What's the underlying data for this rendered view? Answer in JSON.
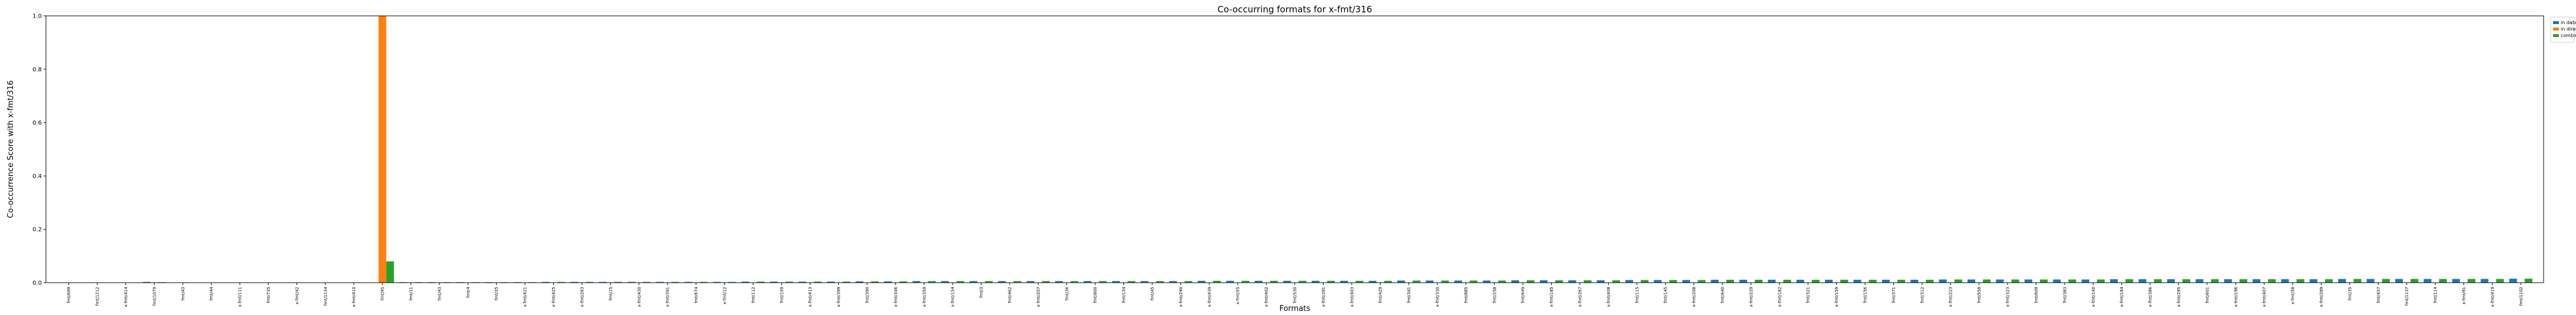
{
  "chart_data": {
    "type": "bar",
    "title": "Co-occurring formats for x-fmt/316",
    "xlabel": "Formats",
    "ylabel": "Co-occurrence Score with x-fmt/316",
    "ylim": [
      0,
      1.0
    ],
    "yticks": [
      "0.0",
      "0.2",
      "0.4",
      "0.6",
      "0.8",
      "1.0"
    ],
    "legend_position": "outside-top-right",
    "colors": [
      "#1f77b4",
      "#ff7f0e",
      "#2ca02c"
    ],
    "categories": [
      "fmt/699",
      "fmt/1212",
      "x-fmt/414",
      "fmt/1079",
      "fmt/43",
      "fmt/44",
      "x-fmt/111",
      "fmt/735",
      "x-fmt/42",
      "fmt/1134",
      "x-fmt/410",
      "fmt/95",
      "fmt/11",
      "fmt/43",
      "fmt/4",
      "fmt/35",
      "x-fmt/421",
      "x-fmt/425",
      "x-fmt/263",
      "fmt/15",
      "x-fmt/430",
      "x-fmt/391",
      "fmt/674",
      "x-fmt/12",
      "fmt/112",
      "fmt/109",
      "x-fmt/413",
      "x-fmt/399",
      "fmt/390",
      "x-fmt/346",
      "x-fmt/359",
      "x-fmt/154",
      "fmt/3",
      "fmt/462",
      "x-fmt/207",
      "fmt/36",
      "fmt/800",
      "fmt/134",
      "fmt/45",
      "x-fmt/290",
      "x-fmt/439",
      "x-fmt/55",
      "x-fmt/402",
      "fmt/530",
      "x-fmt/391",
      "x-fmt/403",
      "fmt/429",
      "fmt/341",
      "x-fmt/330",
      "fmt/885",
      "fmt/258",
      "fmt/649",
      "x-fmt/185",
      "x-fmt/267",
      "x-fmt/408",
      "fmt/115",
      "fmt/145",
      "x-fmt/208",
      "fmt/640",
      "x-fmt/229",
      "x-fmt/182",
      "fmt/321",
      "x-fmt/159",
      "fmt/156",
      "fmt/371",
      "fmt/312",
      "x-fmt/223",
      "fmt/558",
      "x-fmt/323",
      "fmt/609",
      "fmt/383",
      "x-fmt/140",
      "x-fmt/184",
      "x-fmt/386",
      "x-fmt/295",
      "fmt/601",
      "x-fmt/196",
      "x-fmt/407",
      "x-fmt/58",
      "x-fmt/289",
      "fmt/35",
      "fmt/437",
      "fmt/1137",
      "fmt/114",
      "x-fmt/91",
      "x-fmt/419",
      "fmt/1102"
    ],
    "series": [
      {
        "name": "in data-objects",
        "values": [
          0.001,
          0.001,
          0.001,
          0.003,
          0.001,
          0.001,
          0.001,
          0.001,
          0.001,
          0.001,
          0.001,
          0.001,
          0.002,
          0.002,
          0.002,
          0.002,
          0.002,
          0.003,
          0.003,
          0.003,
          0.003,
          0.003,
          0.003,
          0.003,
          0.004,
          0.004,
          0.004,
          0.004,
          0.005,
          0.005,
          0.006,
          0.006,
          0.006,
          0.006,
          0.006,
          0.006,
          0.006,
          0.006,
          0.006,
          0.006,
          0.007,
          0.007,
          0.007,
          0.007,
          0.007,
          0.007,
          0.007,
          0.008,
          0.008,
          0.008,
          0.008,
          0.009,
          0.009,
          0.009,
          0.009,
          0.01,
          0.01,
          0.01,
          0.011,
          0.011,
          0.011,
          0.011,
          0.011,
          0.011,
          0.011,
          0.011,
          0.012,
          0.012,
          0.012,
          0.012,
          0.012,
          0.012,
          0.013,
          0.013,
          0.013,
          0.013,
          0.013,
          0.013,
          0.013,
          0.013,
          0.014,
          0.014,
          0.014,
          0.014,
          0.014,
          0.014,
          0.015
        ]
      },
      {
        "name": "in directories",
        "values": [
          0.001,
          0,
          0,
          0,
          0,
          0,
          0,
          0,
          0,
          0,
          0,
          1.0,
          0,
          0,
          0,
          0,
          0,
          0,
          0,
          0,
          0,
          0,
          0,
          0,
          0,
          0,
          0,
          0,
          0,
          0,
          0,
          0,
          0,
          0,
          0,
          0,
          0,
          0,
          0,
          0,
          0,
          0,
          0,
          0,
          0,
          0,
          0,
          0,
          0,
          0,
          0,
          0,
          0,
          0,
          0,
          0,
          0,
          0,
          0,
          0,
          0,
          0,
          0,
          0,
          0,
          0,
          0,
          0,
          0,
          0,
          0,
          0,
          0,
          0,
          0,
          0,
          0,
          0,
          0,
          0,
          0,
          0,
          0,
          0,
          0,
          0,
          0
        ]
      },
      {
        "name": "combined",
        "values": [
          0.001,
          0.001,
          0.001,
          0.002,
          0.001,
          0.001,
          0.001,
          0.001,
          0.001,
          0.001,
          0.001,
          0.08,
          0.002,
          0.002,
          0.002,
          0.002,
          0.002,
          0.003,
          0.003,
          0.003,
          0.003,
          0.003,
          0.003,
          0.003,
          0.004,
          0.004,
          0.004,
          0.004,
          0.005,
          0.005,
          0.006,
          0.006,
          0.006,
          0.006,
          0.006,
          0.006,
          0.006,
          0.006,
          0.006,
          0.006,
          0.007,
          0.007,
          0.007,
          0.007,
          0.007,
          0.007,
          0.007,
          0.008,
          0.008,
          0.008,
          0.008,
          0.009,
          0.009,
          0.009,
          0.009,
          0.01,
          0.01,
          0.01,
          0.011,
          0.011,
          0.011,
          0.011,
          0.011,
          0.011,
          0.011,
          0.011,
          0.012,
          0.012,
          0.012,
          0.012,
          0.012,
          0.012,
          0.013,
          0.013,
          0.013,
          0.013,
          0.013,
          0.013,
          0.013,
          0.013,
          0.014,
          0.014,
          0.014,
          0.014,
          0.014,
          0.014,
          0.015
        ]
      }
    ]
  }
}
